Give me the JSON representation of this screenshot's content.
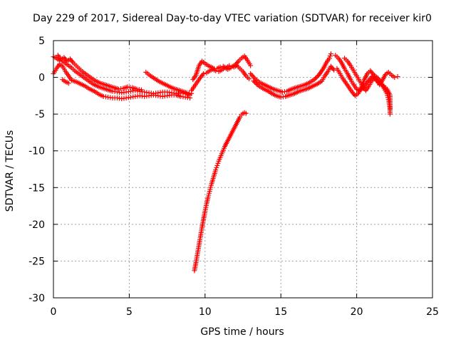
{
  "chart_data": {
    "type": "scatter",
    "title": "Day 229 of 2017, Sidereal Day-to-day VTEC variation (SDTVAR) for receiver kir0",
    "xlabel": "GPS time / hours",
    "ylabel": "SDTVAR / TECUs",
    "xlim": [
      0,
      25
    ],
    "ylim": [
      -30,
      5
    ],
    "xticks": [
      0,
      5,
      10,
      15,
      20,
      25
    ],
    "yticks": [
      -30,
      -25,
      -20,
      -15,
      -10,
      -5,
      0,
      5
    ],
    "xtick_labels": [
      "0",
      "5",
      "10",
      "15",
      "20",
      "25"
    ],
    "ytick_labels": [
      "-30",
      "-25",
      "-20",
      "-15",
      "-10",
      "-5",
      "0",
      "5"
    ],
    "grid": true,
    "marker": "+",
    "color": "#ff0000",
    "series": [
      {
        "name": "trace-main-1",
        "points": [
          [
            0.0,
            2.8
          ],
          [
            0.2,
            2.6
          ],
          [
            0.4,
            2.3
          ],
          [
            0.6,
            2.2
          ],
          [
            0.8,
            1.9
          ],
          [
            1.0,
            1.6
          ],
          [
            1.2,
            1.3
          ],
          [
            1.4,
            0.9
          ],
          [
            1.6,
            0.6
          ],
          [
            1.8,
            0.3
          ],
          [
            2.0,
            0.0
          ],
          [
            2.2,
            -0.3
          ],
          [
            2.4,
            -0.6
          ],
          [
            2.6,
            -0.9
          ],
          [
            2.8,
            -1.1
          ],
          [
            3.0,
            -1.3
          ],
          [
            3.3,
            -1.5
          ],
          [
            3.6,
            -1.7
          ],
          [
            3.9,
            -1.9
          ],
          [
            4.2,
            -2.0
          ],
          [
            4.5,
            -2.1
          ],
          [
            4.8,
            -2.0
          ],
          [
            5.1,
            -1.9
          ],
          [
            5.4,
            -1.8
          ],
          [
            5.7,
            -1.9
          ],
          [
            6.0,
            -2.0
          ],
          [
            6.3,
            -2.1
          ],
          [
            6.6,
            -2.2
          ],
          [
            6.9,
            -2.1
          ],
          [
            7.2,
            -2.0
          ],
          [
            7.5,
            -2.0
          ],
          [
            7.8,
            -2.1
          ],
          [
            8.1,
            -2.2
          ],
          [
            8.4,
            -2.1
          ],
          [
            8.7,
            -2.2
          ],
          [
            9.0,
            -2.4
          ]
        ]
      },
      {
        "name": "trace-main-2",
        "points": [
          [
            0.0,
            0.5
          ],
          [
            0.2,
            1.2
          ],
          [
            0.4,
            1.8
          ],
          [
            0.6,
            1.5
          ],
          [
            0.8,
            0.8
          ],
          [
            1.0,
            0.2
          ],
          [
            1.2,
            -0.4
          ],
          [
            1.5,
            -0.6
          ],
          [
            1.8,
            -0.9
          ],
          [
            2.1,
            -1.2
          ],
          [
            2.4,
            -1.6
          ],
          [
            2.7,
            -1.9
          ],
          [
            3.0,
            -2.3
          ],
          [
            3.3,
            -2.6
          ],
          [
            3.6,
            -2.7
          ],
          [
            3.9,
            -2.8
          ],
          [
            4.2,
            -2.8
          ],
          [
            4.5,
            -2.9
          ],
          [
            4.8,
            -2.8
          ],
          [
            5.1,
            -2.7
          ],
          [
            5.4,
            -2.6
          ],
          [
            5.7,
            -2.5
          ],
          [
            6.0,
            -2.6
          ],
          [
            6.3,
            -2.5
          ],
          [
            6.6,
            -2.4
          ],
          [
            6.9,
            -2.5
          ],
          [
            7.2,
            -2.6
          ],
          [
            7.5,
            -2.5
          ],
          [
            7.8,
            -2.4
          ],
          [
            8.1,
            -2.4
          ],
          [
            8.4,
            -2.6
          ],
          [
            8.7,
            -2.7
          ],
          [
            9.0,
            -2.8
          ]
        ]
      },
      {
        "name": "trace-main-3",
        "points": [
          [
            0.3,
            3.0
          ],
          [
            0.5,
            2.4
          ],
          [
            0.7,
            2.7
          ],
          [
            0.9,
            2.2
          ],
          [
            1.1,
            2.5
          ],
          [
            1.3,
            2.0
          ],
          [
            1.5,
            1.6
          ],
          [
            1.7,
            1.2
          ],
          [
            1.9,
            0.8
          ],
          [
            2.1,
            0.5
          ],
          [
            2.3,
            0.2
          ],
          [
            2.5,
            -0.1
          ],
          [
            2.7,
            -0.4
          ],
          [
            2.9,
            -0.6
          ],
          [
            3.1,
            -0.8
          ],
          [
            3.4,
            -1.0
          ],
          [
            3.7,
            -1.2
          ],
          [
            4.0,
            -1.4
          ],
          [
            4.3,
            -1.6
          ],
          [
            4.6,
            -1.5
          ],
          [
            4.9,
            -1.3
          ],
          [
            5.2,
            -1.4
          ],
          [
            5.5,
            -1.6
          ],
          [
            5.8,
            -1.7
          ]
        ]
      },
      {
        "name": "trace-mid-arc",
        "points": [
          [
            6.1,
            0.7
          ],
          [
            6.4,
            0.2
          ],
          [
            6.7,
            -0.2
          ],
          [
            7.0,
            -0.6
          ],
          [
            7.3,
            -0.9
          ],
          [
            7.6,
            -1.2
          ],
          [
            7.9,
            -1.5
          ],
          [
            8.2,
            -1.7
          ],
          [
            8.5,
            -1.9
          ],
          [
            8.8,
            -2.1
          ],
          [
            9.1,
            -2.2
          ]
        ]
      },
      {
        "name": "trace-short-1",
        "points": [
          [
            0.6,
            -0.3
          ],
          [
            0.8,
            -0.6
          ],
          [
            1.0,
            -0.8
          ]
        ]
      },
      {
        "name": "trace-steep",
        "points": [
          [
            9.3,
            -26.3
          ],
          [
            9.4,
            -25.2
          ],
          [
            9.5,
            -24.0
          ],
          [
            9.6,
            -22.8
          ],
          [
            9.7,
            -21.6
          ],
          [
            9.8,
            -20.4
          ],
          [
            9.9,
            -19.3
          ],
          [
            10.0,
            -18.2
          ],
          [
            10.1,
            -17.2
          ],
          [
            10.2,
            -16.3
          ],
          [
            10.3,
            -15.5
          ],
          [
            10.4,
            -14.7
          ],
          [
            10.5,
            -14.0
          ],
          [
            10.6,
            -13.3
          ],
          [
            10.7,
            -12.6
          ],
          [
            10.8,
            -12.0
          ],
          [
            10.9,
            -11.4
          ],
          [
            11.0,
            -10.9
          ],
          [
            11.1,
            -10.4
          ],
          [
            11.2,
            -9.9
          ],
          [
            11.3,
            -9.4
          ],
          [
            11.4,
            -9.0
          ],
          [
            11.5,
            -8.6
          ],
          [
            11.6,
            -8.2
          ],
          [
            11.7,
            -7.8
          ],
          [
            11.8,
            -7.4
          ],
          [
            11.9,
            -7.0
          ],
          [
            12.0,
            -6.6
          ],
          [
            12.1,
            -6.2
          ],
          [
            12.2,
            -5.8
          ],
          [
            12.3,
            -5.4
          ],
          [
            12.4,
            -5.1
          ],
          [
            12.5,
            -4.9
          ],
          [
            12.6,
            -4.8
          ],
          [
            12.7,
            -4.9
          ]
        ]
      },
      {
        "name": "trace-10-13-upper",
        "points": [
          [
            9.2,
            -0.3
          ],
          [
            9.4,
            0.3
          ],
          [
            9.6,
            1.6
          ],
          [
            9.8,
            2.2
          ],
          [
            10.0,
            1.9
          ],
          [
            10.2,
            1.6
          ],
          [
            10.4,
            1.4
          ],
          [
            10.6,
            1.2
          ],
          [
            10.8,
            1.2
          ],
          [
            11.0,
            1.4
          ],
          [
            11.2,
            1.5
          ],
          [
            11.4,
            1.3
          ],
          [
            11.6,
            1.6
          ],
          [
            11.8,
            1.5
          ],
          [
            12.0,
            1.7
          ],
          [
            12.2,
            2.2
          ],
          [
            12.4,
            2.6
          ],
          [
            12.6,
            2.9
          ],
          [
            12.8,
            2.3
          ],
          [
            13.0,
            1.6
          ]
        ]
      },
      {
        "name": "trace-10-13-lower",
        "points": [
          [
            9.1,
            -1.8
          ],
          [
            9.3,
            -1.2
          ],
          [
            9.5,
            -0.6
          ],
          [
            9.7,
            0.0
          ],
          [
            9.9,
            0.5
          ],
          [
            10.1,
            0.6
          ],
          [
            10.3,
            0.9
          ],
          [
            10.5,
            1.1
          ],
          [
            10.7,
            0.9
          ],
          [
            10.9,
            0.8
          ],
          [
            11.1,
            1.0
          ],
          [
            11.3,
            1.3
          ],
          [
            11.5,
            1.1
          ],
          [
            11.7,
            1.3
          ],
          [
            11.9,
            1.4
          ],
          [
            12.1,
            1.6
          ],
          [
            12.3,
            1.2
          ],
          [
            12.5,
            0.8
          ],
          [
            12.7,
            0.2
          ],
          [
            12.9,
            -0.2
          ]
        ]
      },
      {
        "name": "trace-13-18-a",
        "points": [
          [
            13.0,
            0.5
          ],
          [
            13.3,
            -0.2
          ],
          [
            13.6,
            -0.7
          ],
          [
            13.9,
            -1.0
          ],
          [
            14.2,
            -1.3
          ],
          [
            14.5,
            -1.6
          ],
          [
            14.8,
            -1.8
          ],
          [
            15.1,
            -2.0
          ],
          [
            15.4,
            -1.9
          ],
          [
            15.7,
            -1.6
          ],
          [
            16.0,
            -1.4
          ],
          [
            16.3,
            -1.2
          ],
          [
            16.6,
            -1.0
          ],
          [
            16.9,
            -0.7
          ],
          [
            17.2,
            -0.3
          ],
          [
            17.5,
            0.3
          ],
          [
            17.8,
            1.2
          ],
          [
            18.0,
            2.0
          ],
          [
            18.2,
            2.6
          ],
          [
            18.3,
            3.2
          ]
        ]
      },
      {
        "name": "trace-13-18-b",
        "points": [
          [
            13.2,
            -0.5
          ],
          [
            13.5,
            -1.1
          ],
          [
            13.8,
            -1.5
          ],
          [
            14.1,
            -1.8
          ],
          [
            14.4,
            -2.2
          ],
          [
            14.7,
            -2.5
          ],
          [
            15.0,
            -2.7
          ],
          [
            15.3,
            -2.6
          ],
          [
            15.6,
            -2.4
          ],
          [
            15.9,
            -2.2
          ],
          [
            16.2,
            -1.9
          ],
          [
            16.5,
            -1.7
          ],
          [
            16.8,
            -1.5
          ],
          [
            17.1,
            -1.2
          ],
          [
            17.4,
            -0.9
          ],
          [
            17.7,
            -0.5
          ],
          [
            17.9,
            0.2
          ],
          [
            18.1,
            0.8
          ],
          [
            18.3,
            1.5
          ],
          [
            18.5,
            1.0
          ]
        ]
      },
      {
        "name": "trace-18-23-a",
        "points": [
          [
            18.6,
            3.0
          ],
          [
            18.8,
            2.6
          ],
          [
            19.0,
            2.0
          ],
          [
            19.2,
            1.2
          ],
          [
            19.4,
            0.5
          ],
          [
            19.6,
            -0.3
          ],
          [
            19.8,
            -1.0
          ],
          [
            20.0,
            -1.6
          ],
          [
            20.2,
            -1.8
          ],
          [
            20.4,
            -1.5
          ],
          [
            20.6,
            -0.9
          ],
          [
            20.8,
            -0.4
          ],
          [
            21.0,
            0.1
          ],
          [
            21.2,
            -0.2
          ],
          [
            21.4,
            -0.6
          ],
          [
            21.6,
            -0.9
          ],
          [
            21.8,
            -1.2
          ],
          [
            22.0,
            -1.6
          ],
          [
            22.2,
            -2.4
          ],
          [
            22.2,
            -5.0
          ]
        ]
      },
      {
        "name": "trace-18-23-b",
        "points": [
          [
            18.7,
            1.2
          ],
          [
            18.9,
            0.5
          ],
          [
            19.1,
            -0.2
          ],
          [
            19.3,
            -0.8
          ],
          [
            19.5,
            -1.4
          ],
          [
            19.7,
            -2.0
          ],
          [
            19.9,
            -2.5
          ],
          [
            20.1,
            -2.2
          ],
          [
            20.3,
            -1.4
          ],
          [
            20.5,
            -0.3
          ],
          [
            20.7,
            0.5
          ],
          [
            20.9,
            0.9
          ],
          [
            21.1,
            0.4
          ],
          [
            21.3,
            -0.3
          ],
          [
            21.5,
            -1.0
          ],
          [
            21.7,
            -0.4
          ],
          [
            21.9,
            0.4
          ],
          [
            22.1,
            0.7
          ],
          [
            22.3,
            0.3
          ],
          [
            22.5,
            0.0
          ],
          [
            22.7,
            0.1
          ]
        ]
      },
      {
        "name": "trace-18-23-c",
        "points": [
          [
            19.2,
            2.6
          ],
          [
            19.4,
            2.2
          ],
          [
            19.6,
            1.6
          ],
          [
            19.8,
            0.9
          ],
          [
            20.0,
            0.2
          ],
          [
            20.2,
            -0.5
          ],
          [
            20.4,
            -1.2
          ],
          [
            20.6,
            -1.8
          ],
          [
            20.8,
            -1.2
          ],
          [
            21.0,
            -0.5
          ],
          [
            21.2,
            0.2
          ],
          [
            21.4,
            -0.1
          ],
          [
            21.6,
            -0.7
          ],
          [
            21.8,
            -1.5
          ],
          [
            22.0,
            -2.2
          ],
          [
            22.1,
            -3.0
          ],
          [
            22.2,
            -4.2
          ]
        ]
      }
    ]
  }
}
